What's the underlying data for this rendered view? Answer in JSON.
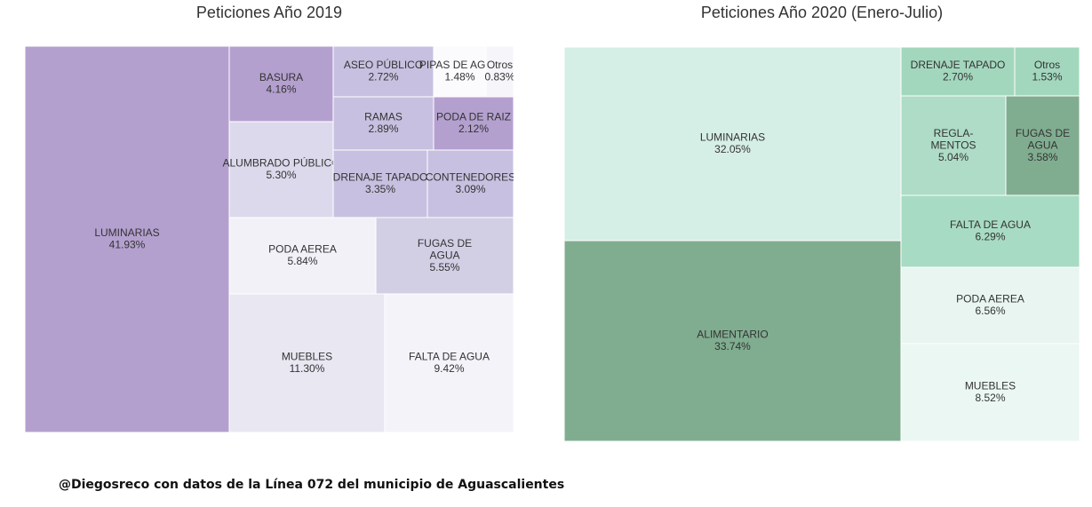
{
  "footer": "@Diegosreco con datos de la Línea 072 del municipio de Aguascalientes",
  "chart_data": [
    {
      "type": "treemap",
      "title": "Peticiones Año 2019",
      "items": [
        {
          "label": "LUMINARIAS",
          "value": "41.93%",
          "color": "#b4a0cf"
        },
        {
          "label": "BASURA",
          "value": "4.16%",
          "color": "#b4a0cf"
        },
        {
          "label": "ASEO PÚBLICO",
          "value": "2.72%",
          "color": "#c8c0e0"
        },
        {
          "label": "PIPAS DE AGUA",
          "value": "1.48%",
          "color": "#fbfafd"
        },
        {
          "label": "Otros",
          "value": "0.83%",
          "color": "#f6f5fa"
        },
        {
          "label": "RAMAS",
          "value": "2.89%",
          "color": "#c8c0e0"
        },
        {
          "label": "PODA DE RAIZ",
          "value": "2.12%",
          "color": "#b4a0cf"
        },
        {
          "label": "ALUMBRADO PÚBLICO",
          "value": "5.30%",
          "color": "#dcd9ec"
        },
        {
          "label": "DRENAJE TAPADO",
          "value": "3.35%",
          "color": "#c8c0e0"
        },
        {
          "label": "CONTENEDORES",
          "value": "3.09%",
          "color": "#c8c0e0"
        },
        {
          "label": "PODA AEREA",
          "value": "5.84%",
          "color": "#f2f1f8"
        },
        {
          "label": "FUGAS DE AGUA",
          "value": "5.55%",
          "color": "#d2cfe5"
        },
        {
          "label": "MUEBLES",
          "value": "11.30%",
          "color": "#e8e7f2"
        },
        {
          "label": "FALTA DE AGUA",
          "value": "9.42%",
          "color": "#f4f3f9"
        }
      ]
    },
    {
      "type": "treemap",
      "title": "Peticiones Año 2020 (Enero-Julio)",
      "items": [
        {
          "label": "LUMINARIAS",
          "value": "32.05%",
          "color": "#d6efe6"
        },
        {
          "label": "ALIMENTARIO",
          "value": "33.74%",
          "color": "#80ad90"
        },
        {
          "label": "DRENAJE TAPADO",
          "value": "2.70%",
          "color": "#a3d7bd"
        },
        {
          "label": "Otros",
          "value": "1.53%",
          "color": "#a3d7bd"
        },
        {
          "label": "REGLA-MENTOS",
          "value": "5.04%",
          "color": "#aedcc6"
        },
        {
          "label": "FUGAS DE AGUA",
          "value": "3.58%",
          "color": "#80ad90"
        },
        {
          "label": "FALTA DE AGUA",
          "value": "6.29%",
          "color": "#a8dbc3"
        },
        {
          "label": "PODA AEREA",
          "value": "6.56%",
          "color": "#e8f5f1"
        },
        {
          "label": "MUEBLES",
          "value": "8.52%",
          "color": "#ebf7f3"
        }
      ]
    }
  ]
}
